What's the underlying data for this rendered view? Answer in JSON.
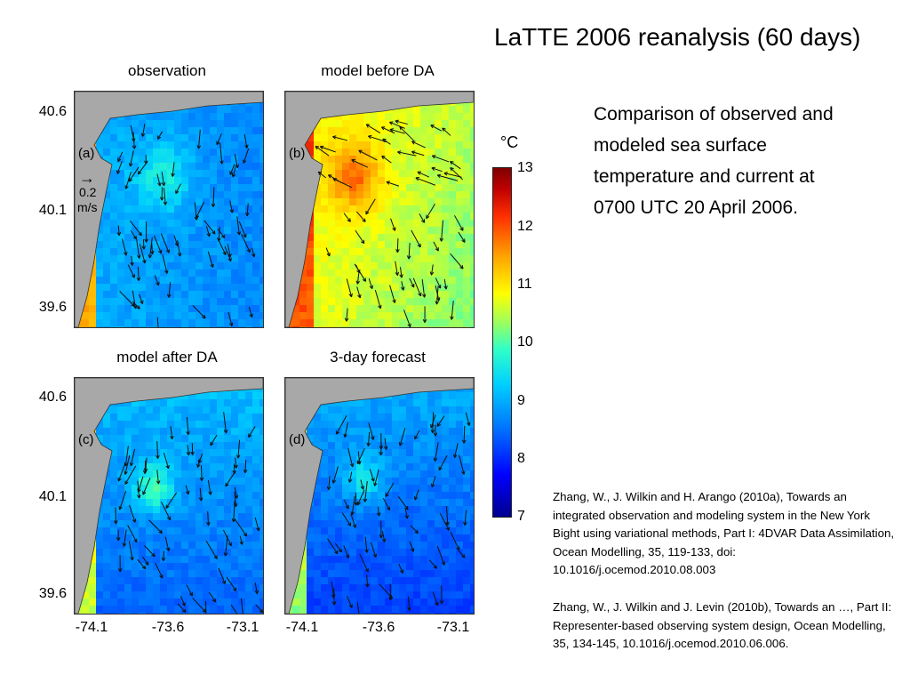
{
  "slide": {
    "title": "LaTTE 2006 reanalysis (60 days)",
    "description": "Comparison of observed and modeled sea surface temperature and current at 0700 UTC 20 April 2006.",
    "ref1": "Zhang, W., J. Wilkin and H. Arango (2010a), Towards an integrated observation and modeling system in the New York Bight using variational methods, Part I: 4DVAR Data Assimilation, Ocean Modelling, 35, 119-133, doi: 10.1016/j.ocemod.2010.08.003",
    "ref2": "Zhang, W., J. Wilkin and J. Levin (2010b), Towards an …, Part II: Representer-based observing system design, Ocean Modelling, 35, 134-145, 10.1016/j.ocemod.2010.06.006."
  },
  "figure": {
    "panels": [
      {
        "title": "observation",
        "tag": "(a)",
        "scale_value": "0.2",
        "scale_unit": "m/s",
        "scale_arrow": "→"
      },
      {
        "title": "model before DA",
        "tag": "(b)"
      },
      {
        "title": "model after DA",
        "tag": "(c)"
      },
      {
        "title": "3-day forecast",
        "tag": "(d)"
      }
    ],
    "yticks": [
      "40.6",
      "40.1",
      "39.6"
    ],
    "xticks": [
      "-74.1",
      "-73.6",
      "-73.1"
    ],
    "colorbar": {
      "unit": "°C",
      "ticks": [
        "13",
        "12",
        "11",
        "10",
        "9",
        "8",
        "7"
      ],
      "range": [
        7,
        13
      ]
    },
    "colors": {
      "land": "#a8a8a8",
      "warm": "#ff3000",
      "cold": "#0050ff"
    }
  }
}
